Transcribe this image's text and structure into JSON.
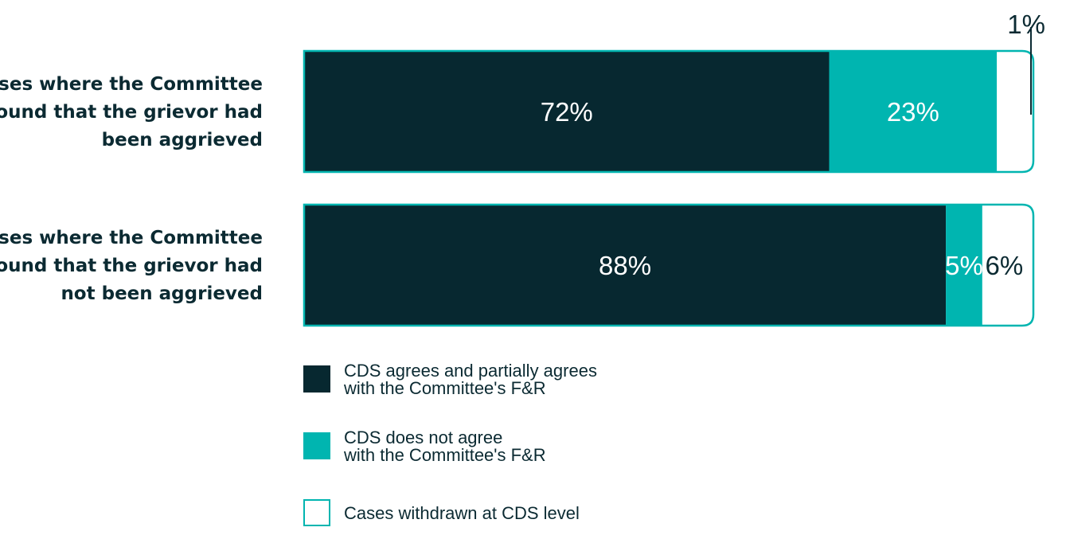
{
  "colors": {
    "dark": "#072830",
    "teal": "#00b5b0",
    "white": "#ffffff",
    "outline": "#00b5b0",
    "text": "#0b2a32"
  },
  "chart_data": {
    "type": "bar",
    "orientation": "horizontal",
    "stacked": true,
    "normalized_percent": true,
    "categories": [
      [
        "Cases where the Committee",
        "found that the grievor had",
        "been aggrieved"
      ],
      [
        "Cases where the Committee",
        "found that the grievor had",
        "not been aggrieved"
      ]
    ],
    "series": [
      {
        "name": "CDS agrees and partially agrees with the Committee's F&R",
        "legend_lines": [
          "CDS agrees and partially agrees",
          "with the Committee's F&R"
        ],
        "color": "#072830",
        "values": [
          72,
          88
        ],
        "labels": [
          "72%",
          "88%"
        ],
        "label_color": "#ffffff"
      },
      {
        "name": "CDS does not agree with the Committee's F&R",
        "legend_lines": [
          "CDS does not agree",
          "with the Committee's F&R"
        ],
        "color": "#00b5b0",
        "values": [
          23,
          5
        ],
        "labels": [
          "23%",
          "5%"
        ],
        "label_color": "#ffffff"
      },
      {
        "name": "Cases withdrawn at CDS level",
        "legend_lines": [
          "Cases withdrawn at CDS level"
        ],
        "color": "#ffffff",
        "values": [
          1,
          6
        ],
        "labels": [
          "1%",
          "6%"
        ],
        "label_color": "#0b2a32"
      }
    ],
    "xlim": [
      0,
      100
    ],
    "grid": false,
    "legend_position": "bottom"
  }
}
